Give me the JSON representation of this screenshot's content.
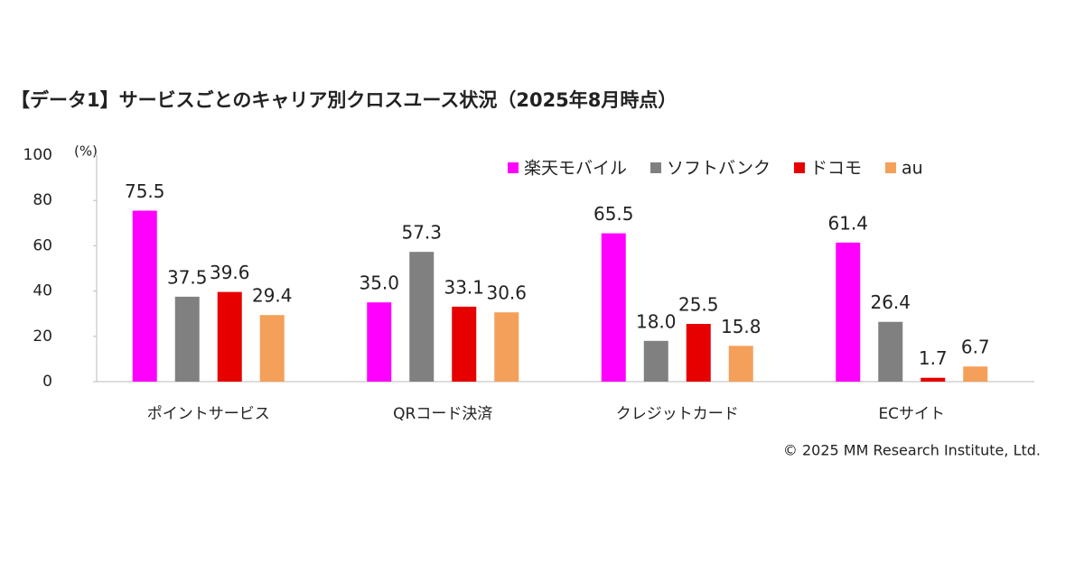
{
  "chart_data": {
    "type": "bar",
    "title": "【データ1】サービスごとのキャリア別クロスユース状況（2025年8月時点）",
    "y_unit": "(%)",
    "footer": "© 2025 MM Research Institute, Ltd.",
    "categories": [
      "ポイントサービス",
      "QRコード決済",
      "クレジットカード",
      "ECサイト"
    ],
    "series": [
      {
        "name": "楽天モバイル",
        "color": "#ff00ff",
        "values": [
          75.5,
          35.0,
          65.5,
          61.4
        ],
        "value_labels": [
          "75.5",
          "35.0",
          "65.5",
          "61.4"
        ]
      },
      {
        "name": "ソフトバンク",
        "color": "#808080",
        "values": [
          37.5,
          57.3,
          18.0,
          26.4
        ],
        "value_labels": [
          "37.5",
          "57.3",
          "18.0",
          "26.4"
        ]
      },
      {
        "name": "ドコモ",
        "color": "#e60000",
        "values": [
          39.6,
          33.1,
          25.5,
          1.7
        ],
        "value_labels": [
          "39.6",
          "33.1",
          "25.5",
          "1.7"
        ]
      },
      {
        "name": "au",
        "color": "#f4a05a",
        "values": [
          29.4,
          30.6,
          15.8,
          6.7
        ],
        "value_labels": [
          "29.4",
          "30.6",
          "15.8",
          "6.7"
        ]
      }
    ],
    "ylim": [
      0,
      100
    ],
    "yticks": [
      0,
      20,
      40,
      60,
      80,
      100
    ],
    "grid": false,
    "legend": "top-right"
  }
}
